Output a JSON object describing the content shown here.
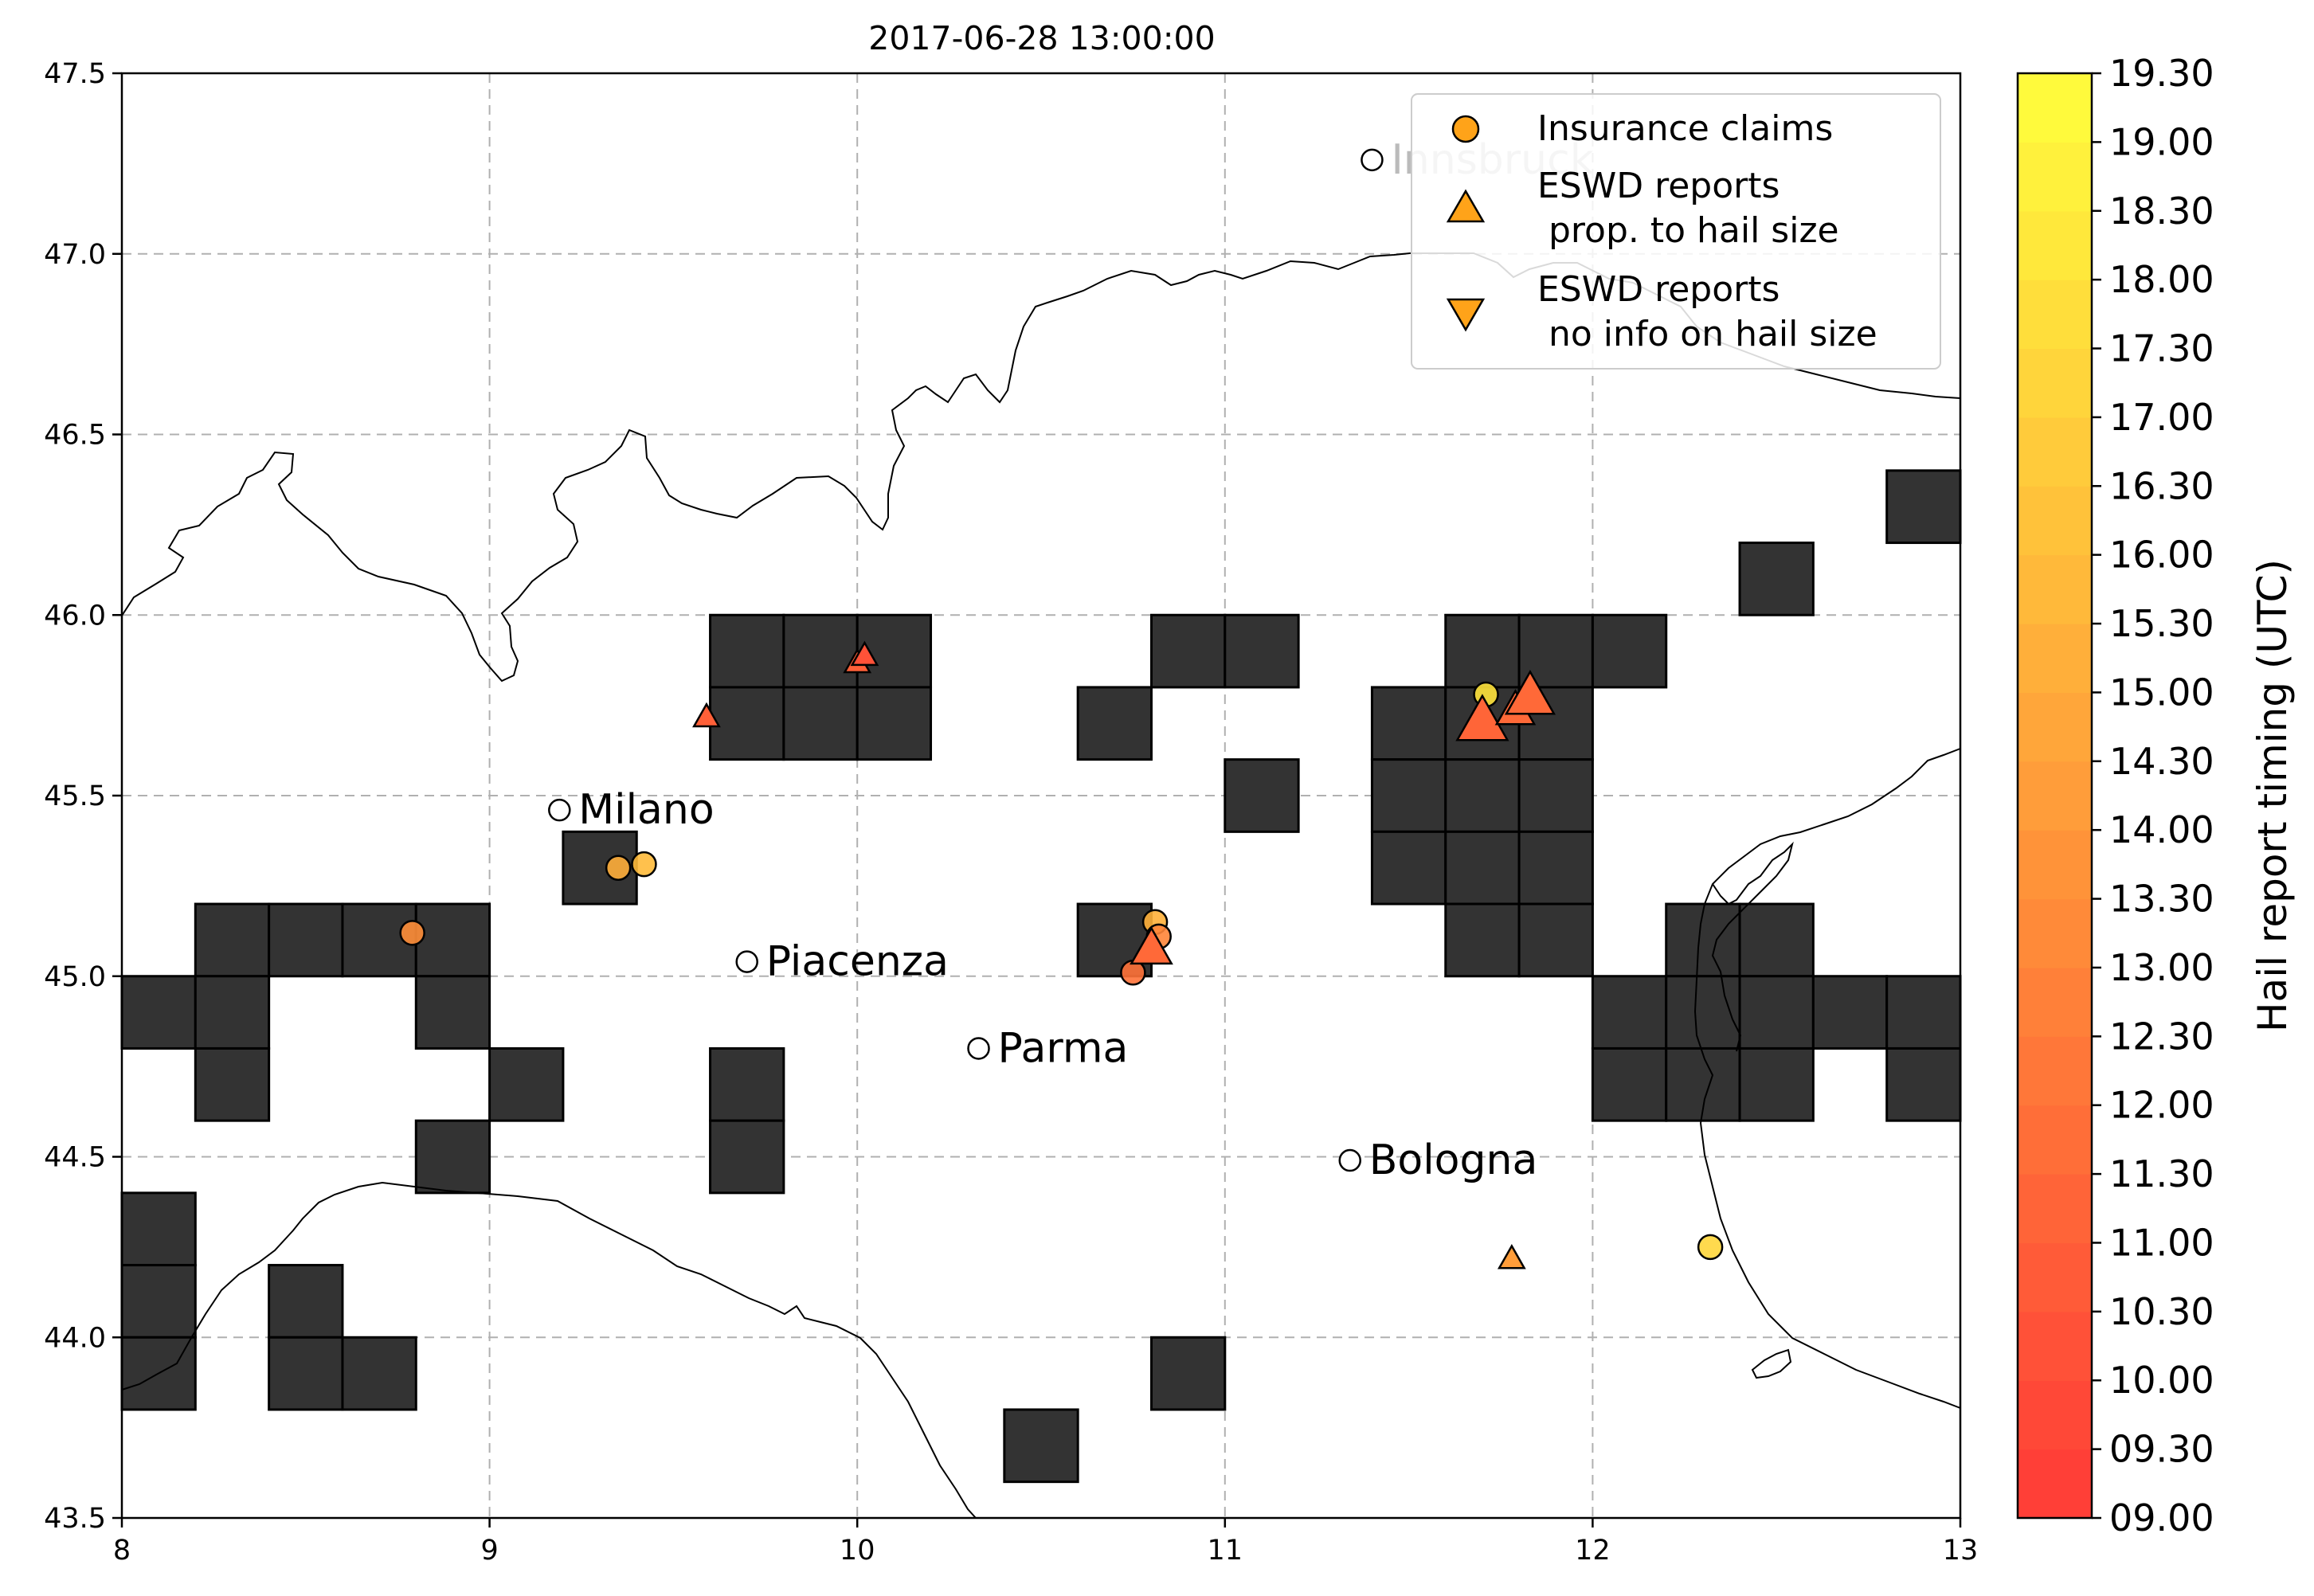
{
  "title": "2017-06-28 13:00:00",
  "map": {
    "lon_range": [
      8,
      13
    ],
    "lat_range": [
      43.5,
      47.5
    ],
    "x_ticks": [
      "8",
      "9",
      "10",
      "11",
      "12",
      "13"
    ],
    "y_ticks": [
      "43.5",
      "44.0",
      "44.5",
      "45.0",
      "45.5",
      "46.0",
      "46.5",
      "47.0",
      "47.5"
    ],
    "grid": "dashed",
    "grid_color": "#b0b0b0",
    "cell_color": "#333333",
    "cells": [
      [
        13.0,
        46.4
      ],
      [
        12.6,
        46.2
      ],
      [
        9.8,
        46.0
      ],
      [
        10.0,
        46.0
      ],
      [
        10.2,
        46.0
      ],
      [
        9.8,
        45.8
      ],
      [
        10.0,
        45.8
      ],
      [
        10.2,
        45.8
      ],
      [
        11.0,
        46.0
      ],
      [
        11.2,
        46.0
      ],
      [
        10.8,
        45.8
      ],
      [
        11.2,
        45.6
      ],
      [
        11.8,
        46.0
      ],
      [
        12.0,
        46.0
      ],
      [
        12.2,
        46.0
      ],
      [
        11.6,
        45.8
      ],
      [
        11.8,
        45.8
      ],
      [
        12.0,
        45.8
      ],
      [
        11.6,
        45.6
      ],
      [
        11.8,
        45.6
      ],
      [
        12.0,
        45.6
      ],
      [
        11.6,
        45.4
      ],
      [
        11.8,
        45.4
      ],
      [
        12.0,
        45.4
      ],
      [
        11.8,
        45.2
      ],
      [
        12.0,
        45.2
      ],
      [
        12.4,
        45.2
      ],
      [
        12.6,
        45.2
      ],
      [
        12.2,
        45.0
      ],
      [
        12.4,
        45.0
      ],
      [
        12.6,
        45.0
      ],
      [
        12.8,
        45.0
      ],
      [
        13.0,
        45.0
      ],
      [
        12.2,
        44.8
      ],
      [
        12.4,
        44.8
      ],
      [
        12.6,
        44.8
      ],
      [
        13.0,
        44.8
      ],
      [
        9.4,
        45.4
      ],
      [
        8.4,
        45.2
      ],
      [
        8.6,
        45.2
      ],
      [
        8.8,
        45.2
      ],
      [
        9.0,
        45.2
      ],
      [
        8.2,
        45.0
      ],
      [
        8.4,
        45.0
      ],
      [
        9.0,
        45.0
      ],
      [
        8.4,
        44.8
      ],
      [
        9.2,
        44.8
      ],
      [
        9.0,
        44.6
      ],
      [
        9.8,
        44.8
      ],
      [
        9.8,
        44.6
      ],
      [
        10.8,
        45.2
      ],
      [
        8.2,
        44.4
      ],
      [
        8.2,
        44.2
      ],
      [
        8.2,
        44.0
      ],
      [
        8.6,
        44.2
      ],
      [
        8.6,
        44.0
      ],
      [
        8.8,
        44.0
      ],
      [
        10.6,
        43.8
      ],
      [
        11.0,
        44.0
      ]
    ],
    "cities": [
      {
        "name": "Innsbruck",
        "lon": 11.4,
        "lat": 47.26,
        "faded": true
      },
      {
        "name": "Milano",
        "lon": 9.19,
        "lat": 45.46,
        "faded": false
      },
      {
        "name": "Piacenza",
        "lon": 9.7,
        "lat": 45.04,
        "faded": false
      },
      {
        "name": "Parma",
        "lon": 10.33,
        "lat": 44.8,
        "faded": false
      },
      {
        "name": "Bologna",
        "lon": 11.34,
        "lat": 44.49,
        "faded": false
      }
    ],
    "insurance_claims": [
      {
        "lon": 8.79,
        "lat": 45.12,
        "time": 13.5
      },
      {
        "lon": 9.35,
        "lat": 45.3,
        "time": 15.2
      },
      {
        "lon": 9.42,
        "lat": 45.31,
        "time": 15.8
      },
      {
        "lon": 10.81,
        "lat": 45.15,
        "time": 15.3
      },
      {
        "lon": 10.82,
        "lat": 45.11,
        "time": 13.0
      },
      {
        "lon": 10.75,
        "lat": 45.01,
        "time": 12.0
      },
      {
        "lon": 11.71,
        "lat": 45.78,
        "time": 18.0
      },
      {
        "lon": 12.32,
        "lat": 44.25,
        "time": 17.3
      }
    ],
    "eswd_reports": [
      {
        "lon": 9.59,
        "lat": 45.72,
        "size": 1.0,
        "time": 11.0
      },
      {
        "lon": 10.0,
        "lat": 45.87,
        "size": 1.0,
        "time": 11.0
      },
      {
        "lon": 10.02,
        "lat": 45.89,
        "size": 1.0,
        "time": 10.3
      },
      {
        "lon": 10.8,
        "lat": 45.08,
        "size": 1.6,
        "time": 11.5
      },
      {
        "lon": 11.7,
        "lat": 45.71,
        "size": 2.0,
        "time": 11.3
      },
      {
        "lon": 11.79,
        "lat": 45.74,
        "size": 1.5,
        "time": 11.5
      },
      {
        "lon": 11.83,
        "lat": 45.78,
        "size": 1.9,
        "time": 11.5
      },
      {
        "lon": 11.78,
        "lat": 44.22,
        "size": 1.0,
        "time": 14.3
      }
    ]
  },
  "legend": {
    "items": [
      {
        "marker": "circle",
        "label_lines": [
          "Insurance claims"
        ]
      },
      {
        "marker": "triangle-up",
        "label_lines": [
          "ESWD reports",
          " prop. to hail size"
        ]
      },
      {
        "marker": "triangle-down",
        "label_lines": [
          "ESWD reports",
          " no info on hail size"
        ]
      }
    ],
    "marker_color": "#ffa319",
    "placement": "top-right"
  },
  "colorbar": {
    "label": "Hail report timing (UTC)",
    "ticks": [
      "09.00",
      "09.30",
      "10.00",
      "10.30",
      "11.00",
      "11.30",
      "12.00",
      "12.30",
      "13.00",
      "13.30",
      "14.00",
      "14.30",
      "15.00",
      "15.30",
      "16.00",
      "16.30",
      "17.00",
      "17.30",
      "18.00",
      "18.30",
      "19.00",
      "19.30"
    ],
    "color_low": "#ff3a37",
    "color_high": "#ffff3c"
  },
  "coast_color": "#000000"
}
